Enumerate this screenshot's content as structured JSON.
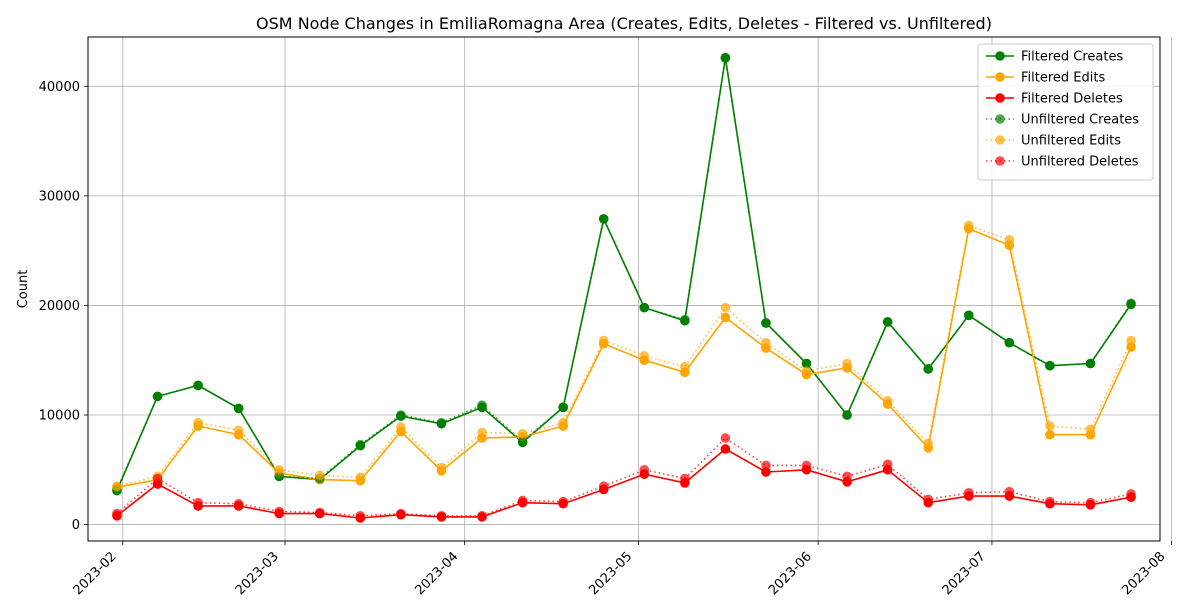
{
  "chart_data": {
    "type": "line",
    "title": "OSM Node Changes in EmiliaRomagna Area (Creates, Edits, Deletes - Filtered vs. Unfiltered)",
    "xlabel": "",
    "ylabel": "Count",
    "ylim": [
      -1500,
      44500
    ],
    "xlim": [
      "2023-01-26",
      "2023-07-30"
    ],
    "grid": true,
    "legend_position": "top-right",
    "x": [
      "2023-01-31",
      "2023-02-07",
      "2023-02-14",
      "2023-02-21",
      "2023-02-28",
      "2023-03-07",
      "2023-03-14",
      "2023-03-21",
      "2023-03-28",
      "2023-04-04",
      "2023-04-11",
      "2023-04-18",
      "2023-04-25",
      "2023-05-02",
      "2023-05-09",
      "2023-05-16",
      "2023-05-23",
      "2023-05-30",
      "2023-06-06",
      "2023-06-13",
      "2023-06-20",
      "2023-06-27",
      "2023-07-04",
      "2023-07-11",
      "2023-07-18",
      "2023-07-25"
    ],
    "x_ticks": [
      "2023-02-01",
      "2023-03-01",
      "2023-04-01",
      "2023-05-01",
      "2023-06-01",
      "2023-07-01",
      "2023-08-01"
    ],
    "x_tick_labels": [
      "2023-02",
      "2023-03",
      "2023-04",
      "2023-05",
      "2023-06",
      "2023-07",
      "2023-08"
    ],
    "y_ticks": [
      0,
      10000,
      20000,
      30000,
      40000
    ],
    "y_tick_labels": [
      "0",
      "10000",
      "20000",
      "30000",
      "40000"
    ],
    "series": [
      {
        "name": "Filtered Creates",
        "color": "#008000",
        "style": "solid",
        "values": [
          3100,
          11700,
          12700,
          10600,
          4400,
          4100,
          7200,
          9900,
          9200,
          10700,
          7500,
          10700,
          27900,
          19800,
          18600,
          42600,
          18400,
          14700,
          10000,
          18500,
          14200,
          19100,
          16600,
          14500,
          14700,
          20100
        ]
      },
      {
        "name": "Filtered Edits",
        "color": "#ffa500",
        "style": "solid",
        "values": [
          3400,
          4100,
          9000,
          8200,
          4700,
          4100,
          4000,
          8500,
          4900,
          7900,
          8000,
          9000,
          16500,
          15000,
          13900,
          18900,
          16100,
          13700,
          14300,
          11000,
          7000,
          27000,
          25500,
          8200,
          8200,
          16200
        ]
      },
      {
        "name": "Filtered Deletes",
        "color": "#ff0000",
        "style": "solid",
        "values": [
          800,
          3700,
          1700,
          1700,
          1000,
          1000,
          600,
          900,
          700,
          700,
          2000,
          1900,
          3200,
          4600,
          3800,
          6900,
          4800,
          5000,
          3900,
          5000,
          2000,
          2600,
          2600,
          1900,
          1800,
          2500
        ]
      },
      {
        "name": "Unfiltered Creates",
        "color": "#008000",
        "style": "dotted",
        "values": [
          3200,
          11700,
          12700,
          10600,
          4400,
          4200,
          7300,
          10000,
          9300,
          10900,
          7600,
          10700,
          27900,
          19800,
          18700,
          42600,
          18400,
          14700,
          10000,
          18500,
          14200,
          19100,
          16600,
          14500,
          14700,
          20200
        ]
      },
      {
        "name": "Unfiltered Edits",
        "color": "#ffa500",
        "style": "dotted",
        "values": [
          3500,
          4400,
          9300,
          8600,
          5000,
          4500,
          4300,
          8900,
          5200,
          8400,
          8300,
          9300,
          16800,
          15400,
          14400,
          19800,
          16600,
          14000,
          14700,
          11300,
          7400,
          27300,
          26000,
          9000,
          8700,
          16800
        ]
      },
      {
        "name": "Unfiltered Deletes",
        "color": "#ff0000",
        "style": "dotted",
        "values": [
          1000,
          4200,
          2000,
          1900,
          1200,
          1100,
          800,
          1000,
          800,
          800,
          2200,
          2100,
          3500,
          5000,
          4200,
          7900,
          5400,
          5400,
          4400,
          5500,
          2300,
          2900,
          3000,
          2100,
          2000,
          2800
        ]
      }
    ]
  }
}
